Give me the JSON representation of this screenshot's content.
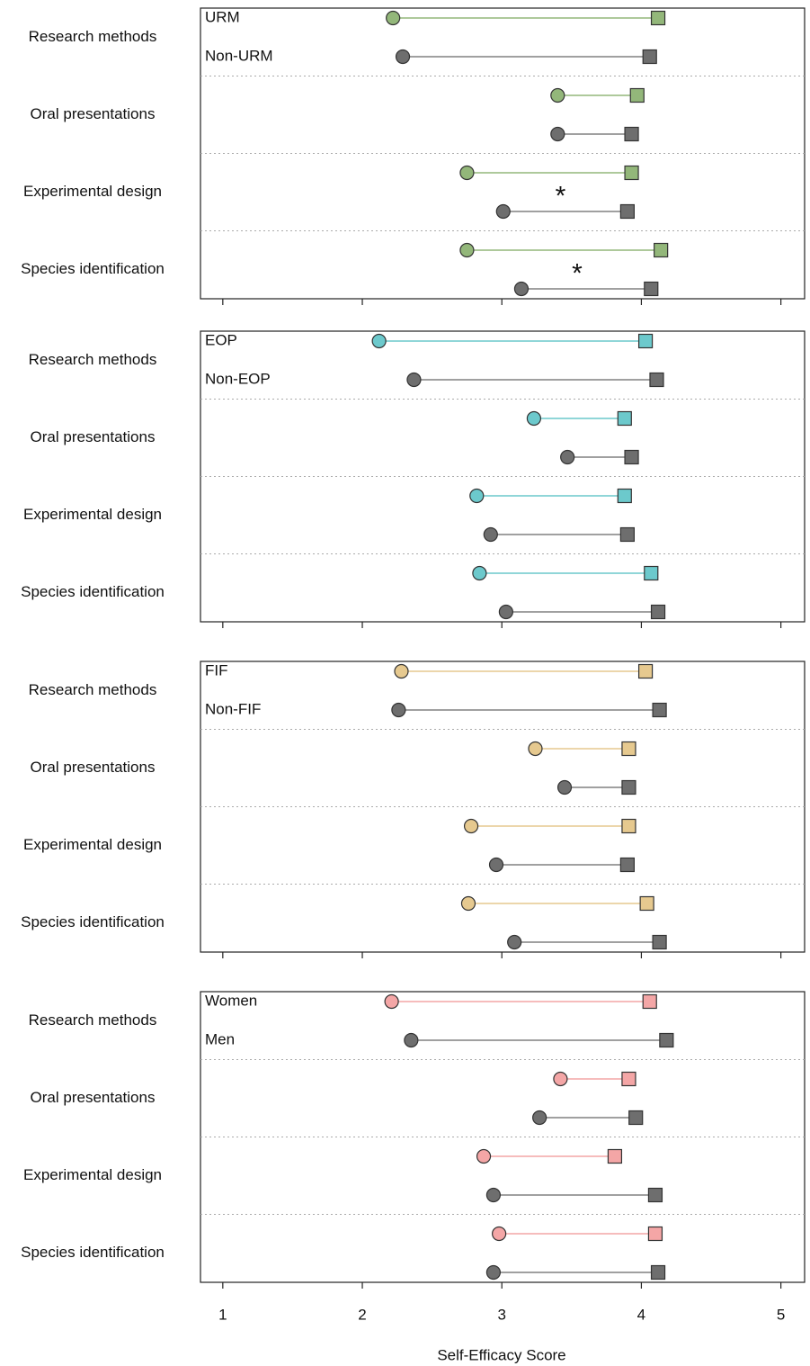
{
  "chart_data": [
    {
      "type": "dumbbell",
      "categories": [
        "Research methods",
        "Oral presentations",
        "Experimental design",
        "Species identification"
      ],
      "series": [
        {
          "name": "URM",
          "color": "#93b77a",
          "values": [
            [
              2.22,
              4.12
            ],
            [
              3.4,
              3.97
            ],
            [
              2.75,
              3.93
            ],
            [
              2.75,
              4.14
            ]
          ]
        },
        {
          "name": "Non-URM",
          "color": "#6e6e6e",
          "values": [
            [
              2.29,
              4.06
            ],
            [
              3.4,
              3.93
            ],
            [
              3.01,
              3.9
            ],
            [
              3.14,
              4.07
            ]
          ]
        }
      ],
      "annotations": [
        {
          "text": "*",
          "category": "Experimental design",
          "x": 3.42
        },
        {
          "text": "*",
          "category": "Species identification",
          "x": 3.54
        }
      ],
      "xlim": [
        0.84,
        5.17
      ],
      "xticks": [
        1,
        2,
        3,
        4,
        5
      ]
    },
    {
      "type": "dumbbell",
      "categories": [
        "Research methods",
        "Oral presentations",
        "Experimental design",
        "Species identification"
      ],
      "series": [
        {
          "name": "EOP",
          "color": "#6cc9cc",
          "values": [
            [
              2.12,
              4.03
            ],
            [
              3.23,
              3.88
            ],
            [
              2.82,
              3.88
            ],
            [
              2.84,
              4.07
            ]
          ]
        },
        {
          "name": "Non-EOP",
          "color": "#6e6e6e",
          "values": [
            [
              2.37,
              4.11
            ],
            [
              3.47,
              3.93
            ],
            [
              2.92,
              3.9
            ],
            [
              3.03,
              4.12
            ]
          ]
        }
      ],
      "xlim": [
        0.84,
        5.17
      ],
      "xticks": [
        1,
        2,
        3,
        4,
        5
      ]
    },
    {
      "type": "dumbbell",
      "categories": [
        "Research methods",
        "Oral presentations",
        "Experimental design",
        "Species identification"
      ],
      "series": [
        {
          "name": "FIF",
          "color": "#e6c98f",
          "values": [
            [
              2.28,
              4.03
            ],
            [
              3.24,
              3.91
            ],
            [
              2.78,
              3.91
            ],
            [
              2.76,
              4.04
            ]
          ]
        },
        {
          "name": "Non-FIF",
          "color": "#6e6e6e",
          "values": [
            [
              2.26,
              4.13
            ],
            [
              3.45,
              3.91
            ],
            [
              2.96,
              3.9
            ],
            [
              3.09,
              4.13
            ]
          ]
        }
      ],
      "xlim": [
        0.84,
        5.17
      ],
      "xticks": [
        1,
        2,
        3,
        4,
        5
      ]
    },
    {
      "type": "dumbbell",
      "categories": [
        "Research methods",
        "Oral presentations",
        "Experimental design",
        "Species identification"
      ],
      "series": [
        {
          "name": "Women",
          "color": "#f4a6a6",
          "values": [
            [
              2.21,
              4.06
            ],
            [
              3.42,
              3.91
            ],
            [
              2.87,
              3.81
            ],
            [
              2.98,
              4.1
            ]
          ]
        },
        {
          "name": "Men",
          "color": "#6e6e6e",
          "values": [
            [
              2.35,
              4.18
            ],
            [
              3.27,
              3.96
            ],
            [
              2.94,
              4.1
            ],
            [
              2.94,
              4.12
            ]
          ]
        }
      ],
      "xlim": [
        0.84,
        5.17
      ],
      "xticks": [
        1,
        2,
        3,
        4,
        5
      ],
      "xlabel": "Self-Efficacy Score"
    }
  ]
}
